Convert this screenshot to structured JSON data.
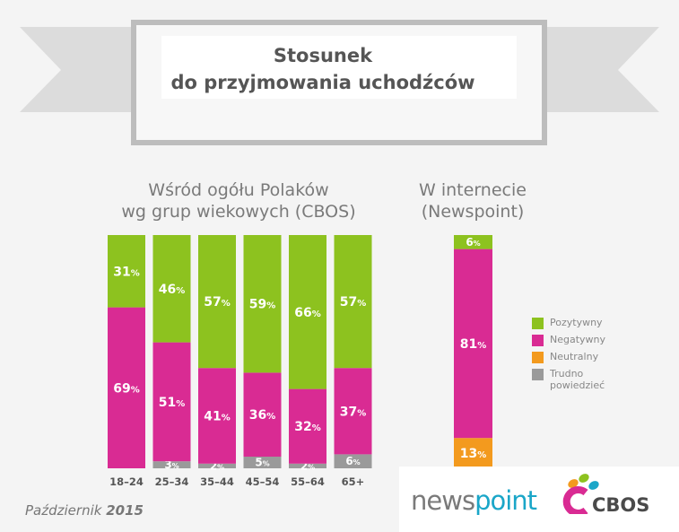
{
  "header": {
    "title_line1": "Stosunek",
    "title_line2": "do przyjmowania uchodźców"
  },
  "subtitles": {
    "left_line1": "Wśród ogółu Polaków",
    "left_line2": "wg grup wiekowych (CBOS)",
    "right_line1": "W internecie",
    "right_line2": "(Newspoint)"
  },
  "colors": {
    "positive": "#8dc21f",
    "negative": "#d92b93",
    "neutral": "#f39a1e",
    "hard_to_say": "#9a9a9a"
  },
  "chart_data": [
    {
      "type": "bar",
      "stacked": true,
      "categories": [
        "18–24",
        "25–34",
        "35–44",
        "45–54",
        "55–64",
        "65+"
      ],
      "series": [
        {
          "name": "Pozytywny",
          "values": [
            31,
            46,
            57,
            59,
            66,
            57
          ]
        },
        {
          "name": "Negatywny",
          "values": [
            69,
            51,
            41,
            36,
            32,
            37
          ]
        },
        {
          "name": "Trudno powiedzieć",
          "values": [
            0,
            3,
            2,
            5,
            2,
            6
          ]
        }
      ],
      "ylim": [
        0,
        100
      ],
      "percent": true
    },
    {
      "type": "bar",
      "stacked": true,
      "categories": [
        ""
      ],
      "series": [
        {
          "name": "Pozytywny",
          "values": [
            6
          ]
        },
        {
          "name": "Negatywny",
          "values": [
            81
          ]
        },
        {
          "name": "Neutralny",
          "values": [
            13
          ]
        }
      ],
      "ylim": [
        0,
        100
      ],
      "percent": true
    }
  ],
  "legend": {
    "items": [
      {
        "label": "Pozytywny",
        "color": "#8dc21f"
      },
      {
        "label": "Negatywny",
        "color": "#d92b93"
      },
      {
        "label": "Neutralny",
        "color": "#f39a1e"
      },
      {
        "label_line1": "Trudno",
        "label_line2": "powiedzieć",
        "color": "#9a9a9a"
      }
    ]
  },
  "footer": {
    "month": "Październik",
    "year": "2015"
  },
  "logos": {
    "newspoint_part1": "news",
    "newspoint_part2": "point",
    "cbos": "CBOS"
  }
}
